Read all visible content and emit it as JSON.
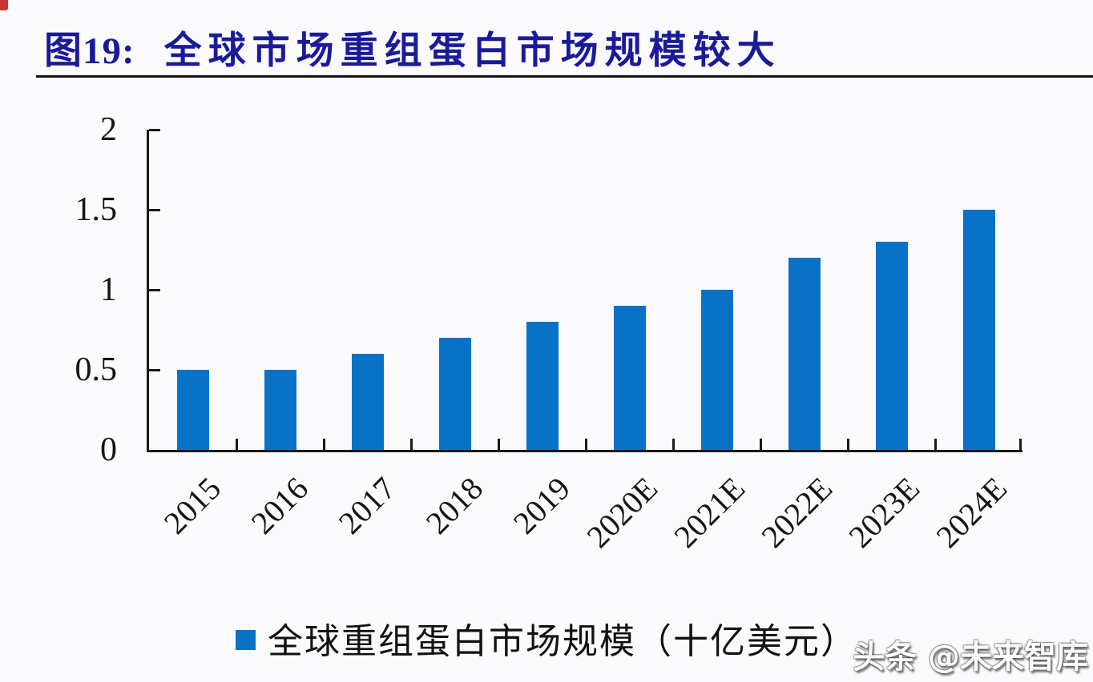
{
  "page": {
    "figure_label": "图19:",
    "title": "全球市场重组蛋白市场规模较大",
    "watermark": "头条 @未来智库"
  },
  "colors": {
    "title": "#1b1b99",
    "bar": "#0a72c6",
    "axis": "#1a1a1a",
    "corner_mark": "#cc3333"
  },
  "chart_data": {
    "type": "bar",
    "title": "图19: 全球市场重组蛋白市场规模较大",
    "categories": [
      "2015",
      "2016",
      "2017",
      "2018",
      "2019",
      "2020E",
      "2021E",
      "2022E",
      "2023E",
      "2024E"
    ],
    "values": [
      0.5,
      0.5,
      0.6,
      0.7,
      0.8,
      0.9,
      1.0,
      1.2,
      1.3,
      1.5
    ],
    "legend_label": "全球重组蛋白市场规模（十亿美元）",
    "legend_position": "bottom",
    "xlabel": "",
    "ylabel": "",
    "ylim": [
      0,
      2
    ],
    "yticks": [
      0,
      0.5,
      1,
      1.5,
      2
    ],
    "ytick_labels": [
      "0",
      "0.5",
      "1",
      "1.5",
      "2"
    ],
    "grid": false,
    "bar_color": "#0a72c6",
    "x_tick_marks": "category-boundaries",
    "xlabel_rotation_deg": -45
  }
}
